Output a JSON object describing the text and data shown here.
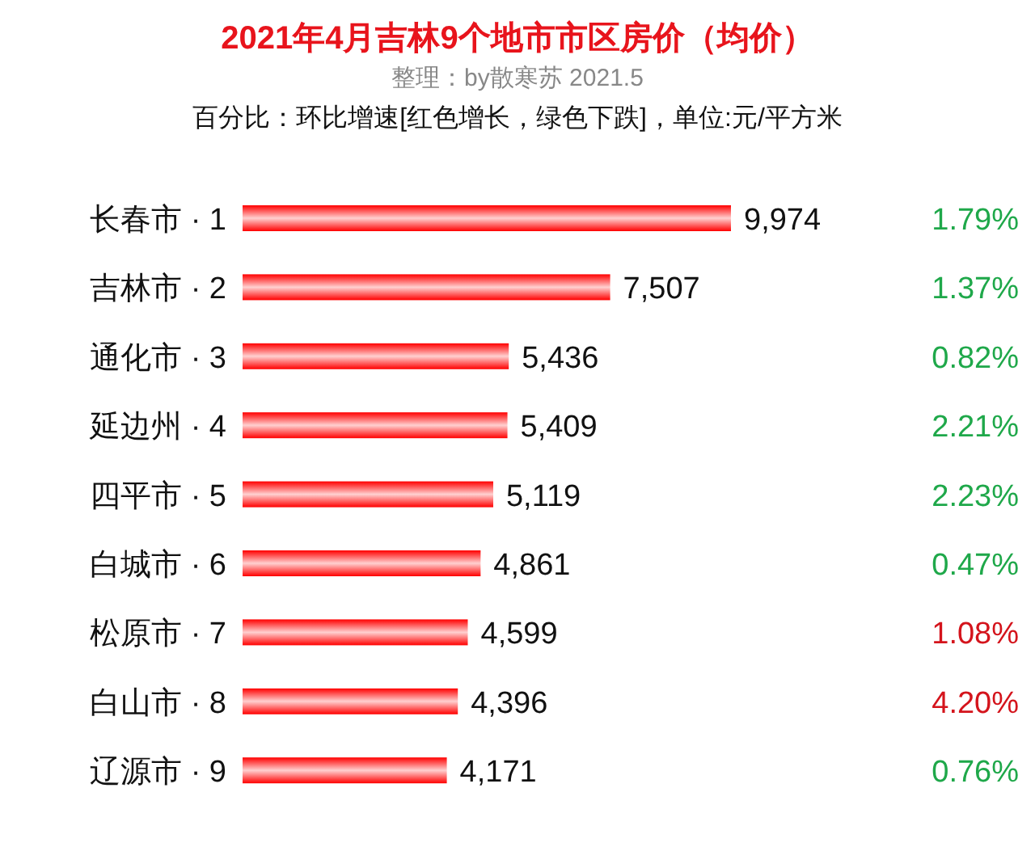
{
  "chart_data": {
    "type": "bar",
    "orientation": "horizontal",
    "title": "2021年4月吉林9个地市市区房价（均价）",
    "subtitle": "整理：by散寒苏  2021.5",
    "categories": [
      "长春市 · 1",
      "吉林市 · 2",
      "通化市 · 3",
      "延边州 · 4",
      "四平市 · 5",
      "白城市 · 6",
      "松原市 · 7",
      "白山市 · 8",
      "辽源市 · 9"
    ],
    "annotations": [
      "百分比：环比增速[红色增长，绿色下跌]，单位:元/平方米",
      "1.79%",
      "1.37%",
      "0.82%",
      "2.21%",
      "2.23%",
      "0.47%",
      "1.08%",
      "4.20%",
      "0.76%"
    ],
    "series": [
      {
        "type": "bar",
        "color": "#ff0000",
        "values": [
          9974,
          7507,
          5436,
          5409,
          5119,
          4861,
          4599,
          4396,
          4171
        ],
        "value_labels": [
          "9,974",
          "7,507",
          "5,436",
          "5,409",
          "5,119",
          "4,861",
          "4,599",
          "4,396",
          "4,171"
        ]
      }
    ]
  }
}
